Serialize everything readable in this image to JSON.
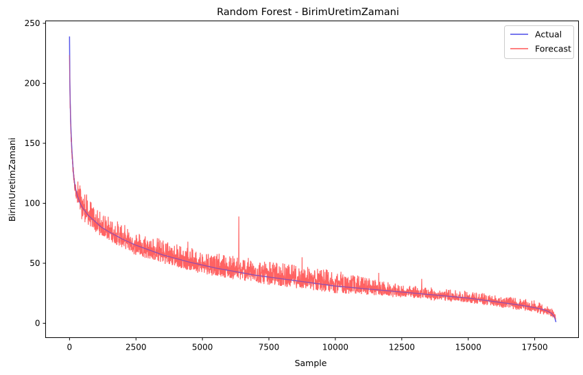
{
  "chart_data": {
    "type": "line",
    "title": "Random Forest - BirimUretimZamani",
    "xlabel": "Sample",
    "ylabel": "BirimUretimZamani",
    "xlim": [
      -900,
      19150
    ],
    "ylim": [
      -12,
      252
    ],
    "xticks": [
      0,
      2500,
      5000,
      7500,
      10000,
      12500,
      15000,
      17500
    ],
    "yticks": [
      0,
      50,
      100,
      150,
      200,
      250
    ],
    "grid": false,
    "legend": "top-right",
    "series": [
      {
        "name": "Actual",
        "color": "#4a4ae8",
        "x": [
          0,
          10,
          20,
          40,
          60,
          80,
          100,
          130,
          160,
          200,
          250,
          300,
          400,
          500,
          600,
          700,
          800,
          1000,
          1200,
          1500,
          2000,
          2500,
          3000,
          3500,
          4000,
          4500,
          5000,
          5500,
          6000,
          6500,
          7000,
          7500,
          8000,
          8500,
          9000,
          9500,
          10000,
          10500,
          11000,
          11500,
          12000,
          12500,
          13000,
          13500,
          14000,
          14500,
          15000,
          15500,
          16000,
          16500,
          17000,
          17500,
          17800,
          18000,
          18150,
          18250,
          18300
        ],
        "y": [
          239,
          205,
          190,
          170,
          158,
          148,
          140,
          130,
          122,
          115,
          110,
          106,
          100,
          96,
          93,
          90,
          88,
          84,
          80,
          76,
          70,
          65,
          61,
          57,
          54,
          51,
          48.5,
          46,
          44,
          42,
          40,
          38.5,
          37,
          35.5,
          34,
          32.5,
          31,
          30,
          29,
          28,
          27,
          26,
          25,
          24,
          23,
          22,
          21,
          19.5,
          18,
          16.5,
          15,
          13,
          11.5,
          10,
          8,
          5,
          1
        ]
      },
      {
        "name": "Forecast",
        "color": "#ff5555",
        "x": [
          0,
          10,
          20,
          40,
          60,
          80,
          100,
          130,
          160,
          200,
          250,
          300,
          400,
          500,
          600,
          700,
          800,
          1000,
          1200,
          1500,
          2000,
          2500,
          3000,
          3500,
          4000,
          4500,
          5000,
          5500,
          6000,
          6500,
          7000,
          7500,
          8000,
          8500,
          9000,
          9500,
          10000,
          10500,
          11000,
          11500,
          12000,
          12500,
          13000,
          13500,
          14000,
          14500,
          15000,
          15500,
          16000,
          16500,
          17000,
          17500,
          17800,
          18000,
          18150,
          18250,
          18300
        ],
        "y": [
          222,
          200,
          186,
          168,
          156,
          146,
          138,
          129,
          121,
          114,
          109,
          105,
          99,
          95,
          92,
          89,
          87,
          83,
          79,
          75,
          69,
          64,
          60,
          56,
          53,
          50,
          48,
          45.5,
          43.5,
          41.5,
          39.5,
          38,
          36.5,
          35,
          33.5,
          32,
          30.5,
          29.5,
          28.5,
          27.5,
          26.5,
          25.5,
          24.5,
          23.5,
          22.5,
          21.5,
          20.5,
          19,
          17.5,
          16,
          14.5,
          12.5,
          11,
          9.5,
          8,
          6,
          5
        ],
        "noise_band": [
          {
            "x": 300,
            "lo": 90,
            "hi": 120
          },
          {
            "x": 1000,
            "lo": 75,
            "hi": 95
          },
          {
            "x": 2500,
            "lo": 56,
            "hi": 77
          },
          {
            "x": 5000,
            "lo": 41,
            "hi": 60
          },
          {
            "x": 7500,
            "lo": 32,
            "hi": 52
          },
          {
            "x": 10000,
            "lo": 26,
            "hi": 44
          },
          {
            "x": 12500,
            "lo": 21,
            "hi": 32
          },
          {
            "x": 15000,
            "lo": 17,
            "hi": 27
          },
          {
            "x": 17500,
            "lo": 9,
            "hi": 19
          },
          {
            "x": 18300,
            "lo": 4,
            "hi": 11
          }
        ],
        "outliers": [
          {
            "x": 6370,
            "y": 89
          },
          {
            "x": 4450,
            "y": 68
          },
          {
            "x": 8750,
            "y": 55
          },
          {
            "x": 11630,
            "y": 42
          },
          {
            "x": 13250,
            "y": 37
          }
        ]
      }
    ]
  }
}
